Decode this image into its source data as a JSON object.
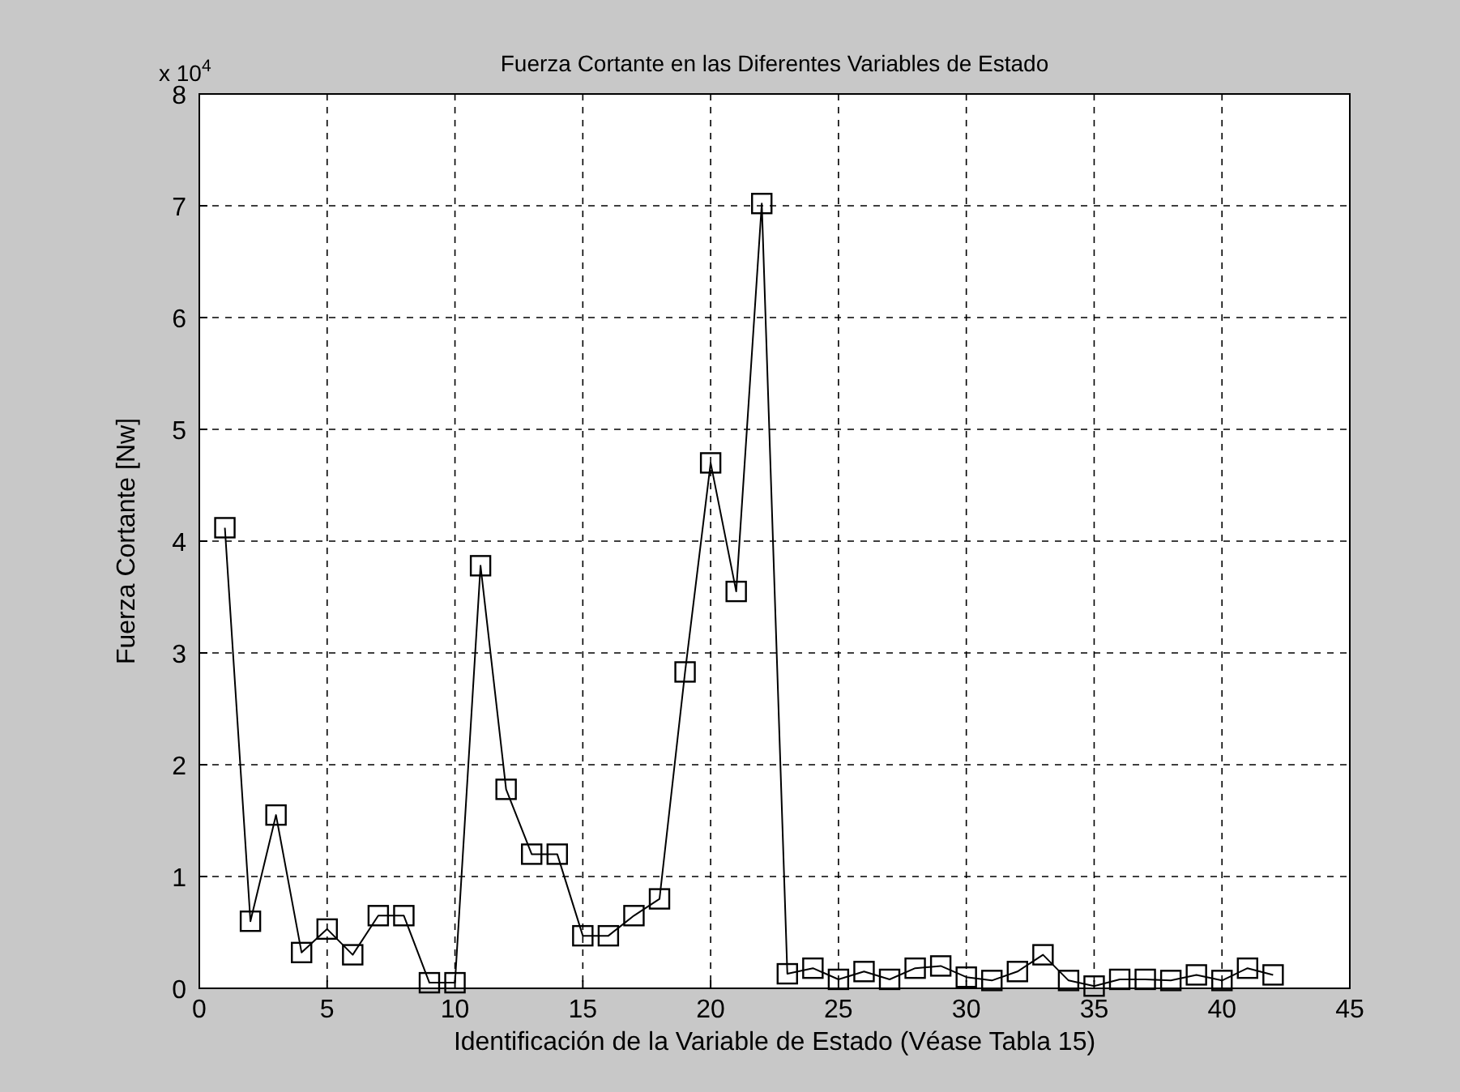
{
  "chart_data": {
    "type": "line",
    "title": "Fuerza Cortante en las Diferentes Variables de Estado",
    "xlabel": "Identificación de la Variable de Estado (Véase Tabla 15)",
    "ylabel": "Fuerza Cortante [Nw]",
    "annotations": [
      "x 10$^{4}$"
    ],
    "x": [
      1,
      2,
      3,
      4,
      5,
      6,
      7,
      8,
      9,
      10,
      11,
      12,
      13,
      14,
      15,
      16,
      17,
      18,
      19,
      20,
      21,
      22,
      23,
      24,
      25,
      26,
      27,
      28,
      29,
      30,
      31,
      32,
      33,
      34,
      35,
      36,
      37,
      38,
      39,
      40,
      41,
      42
    ],
    "series": [
      {
        "color": "#000000",
        "values": [
          4.12,
          0.6,
          1.55,
          0.32,
          0.53,
          0.3,
          0.65,
          0.65,
          0.05,
          0.05,
          3.78,
          1.78,
          1.2,
          1.2,
          0.47,
          0.47,
          0.65,
          0.8,
          2.83,
          4.7,
          3.55,
          7.02,
          0.13,
          0.18,
          0.08,
          0.15,
          0.08,
          0.18,
          0.2,
          0.1,
          0.07,
          0.15,
          0.3,
          0.07,
          0.02,
          0.08,
          0.08,
          0.07,
          0.12,
          0.07,
          0.18,
          0.12
        ]
      }
    ],
    "xlim": [
      0,
      45
    ],
    "xticks": [
      0,
      5,
      10,
      15,
      20,
      25,
      30,
      35,
      40,
      45
    ],
    "ylim": [
      0,
      8
    ],
    "yticks": [
      0,
      1,
      2,
      3,
      4,
      5,
      6,
      7,
      8
    ],
    "grid": true,
    "marker": "square",
    "line_style": "solid"
  }
}
